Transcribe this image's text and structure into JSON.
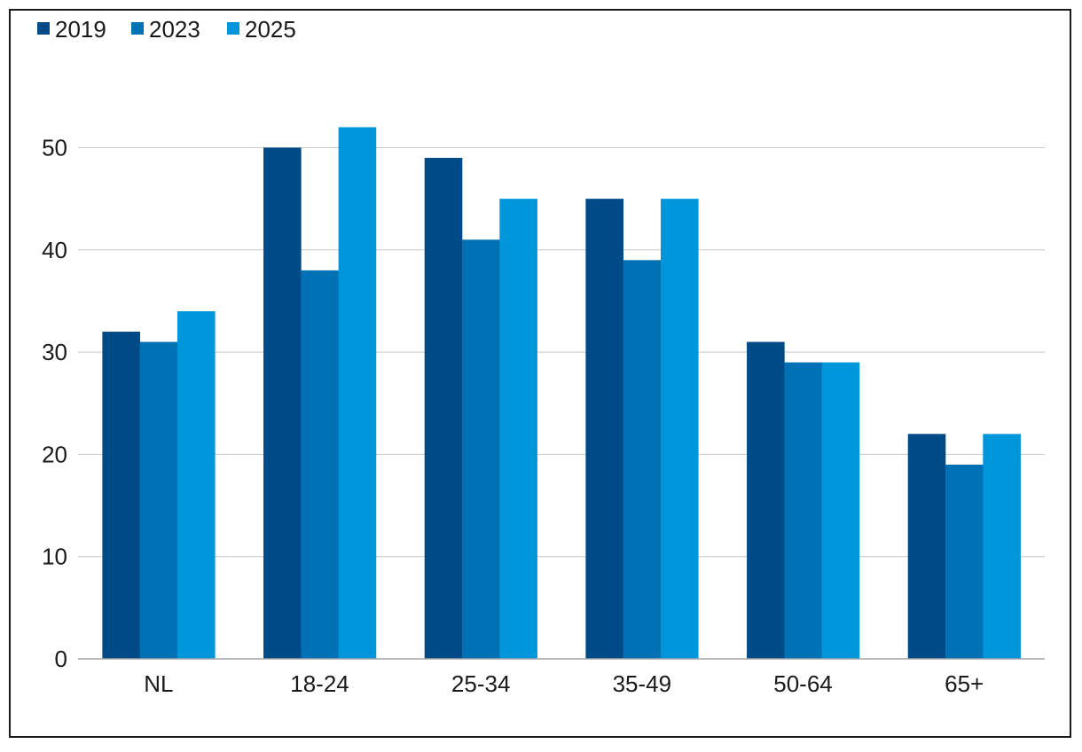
{
  "chart_data": {
    "type": "bar",
    "title": "",
    "xlabel": "",
    "ylabel": "",
    "categories": [
      "NL",
      "18-24",
      "25-34",
      "35-49",
      "50-64",
      "65+"
    ],
    "series": [
      {
        "name": "2019",
        "color": "#004a87",
        "values": [
          32,
          50,
          49,
          45,
          31,
          22
        ]
      },
      {
        "name": "2023",
        "color": "#0071b4",
        "values": [
          31,
          38,
          41,
          39,
          29,
          19
        ]
      },
      {
        "name": "2025",
        "color": "#0096db",
        "values": [
          34,
          52,
          45,
          45,
          29,
          22
        ]
      }
    ],
    "ylim": [
      0,
      50
    ],
    "yticks": [
      "0",
      "10",
      "20",
      "30",
      "40",
      "50"
    ],
    "grid": true,
    "legend_position": "top-left",
    "colors": {
      "gridline": "#c8c8c8",
      "axis": "#a6a6a6",
      "text": "#1a1a1a"
    }
  }
}
